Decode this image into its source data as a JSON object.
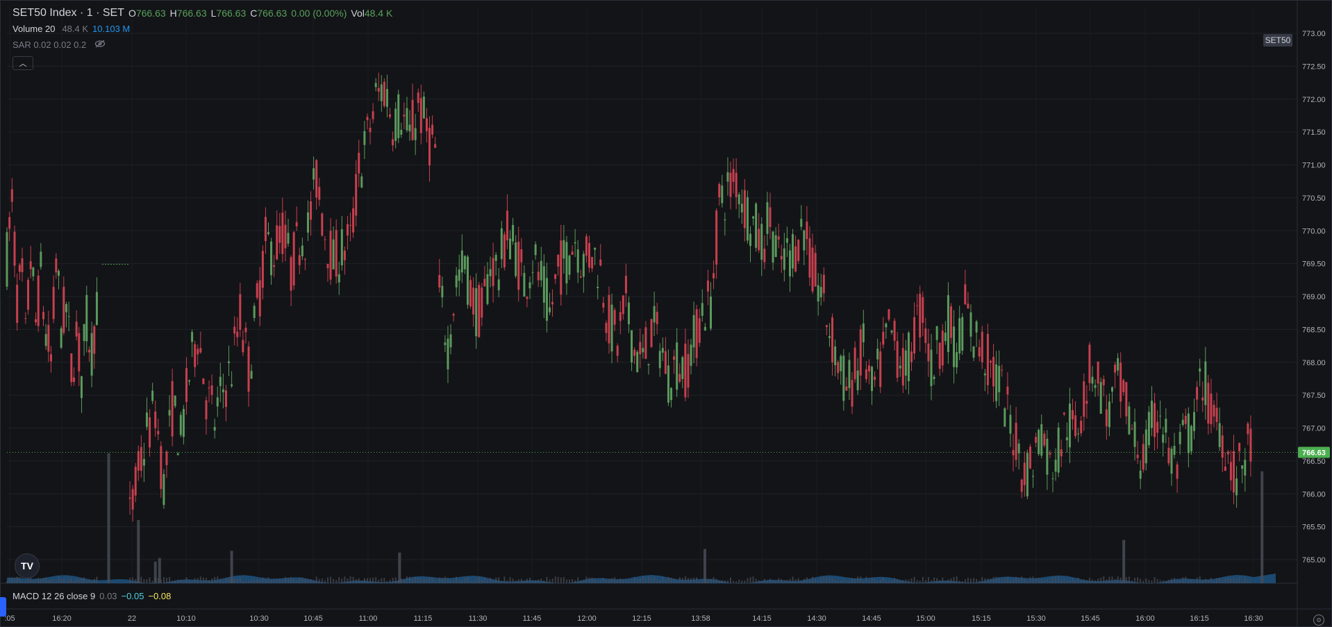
{
  "legend": {
    "symbol": "SET50 Index · 1 · SET",
    "o_label": "O",
    "o": "766.63",
    "h_label": "H",
    "h": "766.63",
    "l_label": "L",
    "l": "766.63",
    "c_label": "C",
    "c": "766.63",
    "change": "0.00 (0.00%)",
    "vol_label": "Vol",
    "vol": "48.4 K"
  },
  "volume_indicator": {
    "label": "Volume 20",
    "value1": "48.4 K",
    "value2": "10.103 M"
  },
  "sar_indicator": {
    "label": "SAR 0.02 0.02 0.2",
    "hidden_icon": "eye-off-icon"
  },
  "macd_indicator": {
    "label": "MACD 12 26 close 9",
    "v1": "0.03",
    "v2": "−0.05",
    "v3": "−0.08"
  },
  "symbol_badge": "SET50",
  "price_badge": "766.63",
  "icons": {
    "collapse": "chevron-up-icon",
    "logo": "tradingview-logo-icon",
    "settings": "settings-icon"
  },
  "colors": {
    "up": "#5b9a5d",
    "down": "#c8404f",
    "volume": "#1e4f7a",
    "bg": "#131417",
    "badge": "#4caf50"
  },
  "chart_data": {
    "type": "candlestick",
    "y_axis": {
      "min": 764.75,
      "max": 773.25,
      "ticks": [
        "773.00",
        "772.50",
        "772.00",
        "771.50",
        "771.00",
        "770.50",
        "770.00",
        "769.50",
        "769.00",
        "768.50",
        "768.00",
        "767.50",
        "767.00",
        "766.50",
        "766.00",
        "765.50",
        "765.00"
      ]
    },
    "x_axis": {
      "ticks": [
        ":05",
        "16:20",
        "22",
        "10:10",
        "10:30",
        "10:45",
        "11:00",
        "11:15",
        "11:30",
        "11:45",
        "12:00",
        "12:15",
        "13:58",
        "14:15",
        "14:30",
        "14:45",
        "15:00",
        "15:15",
        "15:30",
        "15:45",
        "16:00",
        "16:15",
        "16:30"
      ]
    },
    "last_price": 766.63,
    "path": [
      [
        0,
        769.6
      ],
      [
        6,
        770.4
      ],
      [
        12,
        769.0
      ],
      [
        18,
        769.2
      ],
      [
        22,
        768.3
      ],
      [
        28,
        769.6
      ],
      [
        34,
        768.6
      ],
      [
        40,
        769.3
      ],
      [
        46,
        768.4
      ],
      [
        52,
        768.0
      ],
      [
        58,
        769.5
      ],
      [
        64,
        768.6
      ],
      [
        70,
        768.8
      ],
      [
        76,
        767.9
      ],
      [
        82,
        768.4
      ],
      [
        88,
        767.8
      ],
      [
        94,
        768.6
      ],
      [
        100,
        768.2
      ],
      [
        106,
        768.9
      ],
      [
        145,
        765.6
      ],
      [
        155,
        766.3
      ],
      [
        165,
        766.9
      ],
      [
        175,
        767.3
      ],
      [
        185,
        766.1
      ],
      [
        195,
        767.3
      ],
      [
        205,
        766.8
      ],
      [
        215,
        767.8
      ],
      [
        225,
        768.5
      ],
      [
        235,
        767.5
      ],
      [
        245,
        767.1
      ],
      [
        255,
        767.6
      ],
      [
        265,
        767.9
      ],
      [
        275,
        768.7
      ],
      [
        285,
        767.9
      ],
      [
        295,
        768.8
      ],
      [
        305,
        769.8
      ],
      [
        315,
        769.7
      ],
      [
        325,
        770.0
      ],
      [
        335,
        769.4
      ],
      [
        345,
        769.9
      ],
      [
        355,
        770.0
      ],
      [
        365,
        770.8
      ],
      [
        375,
        770.0
      ],
      [
        385,
        769.5
      ],
      [
        395,
        769.7
      ],
      [
        405,
        769.8
      ],
      [
        415,
        770.9
      ],
      [
        425,
        771.4
      ],
      [
        435,
        772.0
      ],
      [
        445,
        772.2
      ],
      [
        455,
        771.7
      ],
      [
        465,
        771.8
      ],
      [
        475,
        771.4
      ],
      [
        485,
        771.9
      ],
      [
        495,
        771.5
      ],
      [
        505,
        771.2
      ],
      [
        510,
        769.0
      ],
      [
        520,
        768.3
      ],
      [
        530,
        769.2
      ],
      [
        540,
        769.5
      ],
      [
        550,
        768.9
      ],
      [
        560,
        768.7
      ],
      [
        570,
        769.5
      ],
      [
        580,
        769.4
      ],
      [
        590,
        770.0
      ],
      [
        600,
        769.7
      ],
      [
        610,
        769.2
      ],
      [
        620,
        769.6
      ],
      [
        630,
        769.2
      ],
      [
        640,
        768.7
      ],
      [
        650,
        769.4
      ],
      [
        660,
        769.6
      ],
      [
        670,
        769.9
      ],
      [
        680,
        769.5
      ],
      [
        690,
        769.7
      ],
      [
        700,
        769.4
      ],
      [
        710,
        768.6
      ],
      [
        720,
        768.3
      ],
      [
        730,
        768.9
      ],
      [
        740,
        768.2
      ],
      [
        750,
        768.0
      ],
      [
        760,
        768.5
      ],
      [
        770,
        768.3
      ],
      [
        780,
        767.8
      ],
      [
        790,
        768.0
      ],
      [
        800,
        767.9
      ],
      [
        810,
        768.3
      ],
      [
        820,
        768.8
      ],
      [
        830,
        768.9
      ],
      [
        840,
        770.4
      ],
      [
        850,
        770.6
      ],
      [
        860,
        770.8
      ],
      [
        870,
        770.4
      ],
      [
        880,
        770.1
      ],
      [
        890,
        769.8
      ],
      [
        900,
        770.2
      ],
      [
        910,
        769.5
      ],
      [
        920,
        769.6
      ],
      [
        930,
        769.8
      ],
      [
        940,
        770.1
      ],
      [
        950,
        769.3
      ],
      [
        960,
        769.1
      ],
      [
        970,
        768.5
      ],
      [
        980,
        768.0
      ],
      [
        990,
        767.6
      ],
      [
        1000,
        767.8
      ],
      [
        1010,
        768.2
      ],
      [
        1020,
        767.5
      ],
      [
        1030,
        767.9
      ],
      [
        1040,
        768.5
      ],
      [
        1050,
        768.2
      ],
      [
        1060,
        767.8
      ],
      [
        1070,
        768.5
      ],
      [
        1080,
        768.8
      ],
      [
        1090,
        767.9
      ],
      [
        1100,
        768.3
      ],
      [
        1110,
        768.6
      ],
      [
        1120,
        768.2
      ],
      [
        1130,
        768.8
      ],
      [
        1140,
        768.4
      ],
      [
        1150,
        768.2
      ],
      [
        1160,
        767.9
      ],
      [
        1170,
        767.7
      ],
      [
        1180,
        767.2
      ],
      [
        1190,
        766.8
      ],
      [
        1200,
        766.3
      ],
      [
        1210,
        766.5
      ],
      [
        1220,
        767.0
      ],
      [
        1230,
        766.4
      ],
      [
        1240,
        766.7
      ],
      [
        1250,
        767.1
      ],
      [
        1260,
        766.9
      ],
      [
        1270,
        767.5
      ],
      [
        1280,
        768.0
      ],
      [
        1290,
        767.6
      ],
      [
        1300,
        767.2
      ],
      [
        1310,
        767.7
      ],
      [
        1320,
        767.3
      ],
      [
        1330,
        766.8
      ],
      [
        1340,
        766.5
      ],
      [
        1350,
        767.0
      ],
      [
        1360,
        767.3
      ],
      [
        1370,
        766.6
      ],
      [
        1380,
        766.4
      ],
      [
        1390,
        766.9
      ],
      [
        1400,
        767.0
      ],
      [
        1410,
        767.8
      ],
      [
        1420,
        767.2
      ],
      [
        1430,
        767.1
      ],
      [
        1440,
        766.6
      ],
      [
        1450,
        766.2
      ],
      [
        1460,
        766.6
      ],
      [
        1470,
        766.7
      ]
    ],
    "volume_spikes": [
      [
        120,
        0.72
      ],
      [
        155,
        0.35
      ],
      [
        175,
        0.12
      ],
      [
        180,
        0.14
      ],
      [
        265,
        0.18
      ],
      [
        463,
        0.17
      ],
      [
        823,
        0.19
      ],
      [
        1317,
        0.24
      ],
      [
        1480,
        0.62
      ]
    ]
  }
}
